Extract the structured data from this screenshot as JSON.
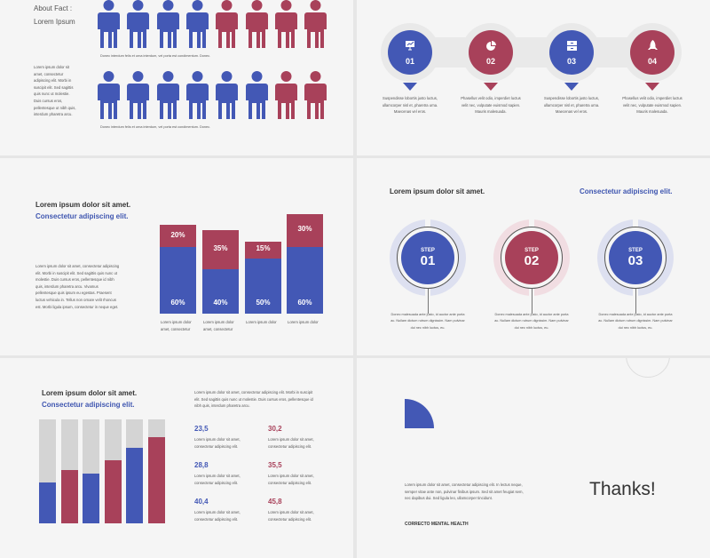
{
  "colors": {
    "blue": "#4358b5",
    "red": "#a8415a",
    "gray": "#d4d4d4"
  },
  "slide1": {
    "title": "About Fact :",
    "subtitle": "Lorem Ipsum",
    "paragraph": "Lorem ipsum dolor sit amet, consectetur adipiscing elit. Morbi in suscipit elit. Sed sagittis quis nunc ut molestie. Duis cursus eros, pellentesque ut nibh quis, interdum pharetra arcu.",
    "rows": [
      {
        "people": [
          "blue",
          "blue",
          "blue",
          "blue",
          "red",
          "red",
          "red",
          "red"
        ],
        "caption": "Donec interdum felis et urna interdum, vel porta est condimentum. Donec."
      },
      {
        "people": [
          "blue",
          "blue",
          "blue",
          "blue",
          "blue",
          "blue",
          "red",
          "red"
        ],
        "caption": "Donec interdum felis et urna interdum, vel porta est condimentum. Donec."
      }
    ]
  },
  "slide2": {
    "steps": [
      {
        "num": "01",
        "icon": "presentation-chart-icon",
        "color": "blue",
        "text": "Suspendisse lobortis justo luctus, ullamcorper nisl et, pharetra urna. Maecenas vel eros."
      },
      {
        "num": "02",
        "icon": "pie-chart-icon",
        "color": "red",
        "text": "Phasellus velit odio, imperdiet luctus velit nec, vulputate euismod sapien. Mauris malesuada."
      },
      {
        "num": "03",
        "icon": "filing-cabinet-icon",
        "color": "blue",
        "text": "Suspendisse lobortis justo luctus, ullamcorper nisl et, pharetra urna. Maecenas vel eros."
      },
      {
        "num": "04",
        "icon": "rocket-icon",
        "color": "red",
        "text": "Phasellus velit odio, imperdiet luctus velit nec, vulputate euismod sapien. Mauris malesuada."
      }
    ]
  },
  "slide3": {
    "title": "Lorem ipsum dolor sit amet.",
    "subtitle": "Consectetur adipiscing elit.",
    "paragraph": "Lorem ipsum dolor sit amet, consectetur adipiscing elit. Morbi in suscipit elit. Sed sagittis quis nunc ut molestie. Duis cursus eros, pellentesque id nibh quis, interdum pharetra arcu. Vivamus pellentesque quis ipsum eu egestas. Praesent luctus vehicula in. Tellus non ornare velit rhoncus est. Morbi ligula ipsum, consectetur in neque eget."
  },
  "chart_data": [
    {
      "type": "bar",
      "stacked": true,
      "categories": [
        "Lorem ipsum dolor amet, consectetur",
        "Lorem ipsum dolor amet, consectetur",
        "Lorem ipsum dolor",
        "Lorem ipsum dolor"
      ],
      "series": [
        {
          "color": "#4358b5",
          "values": [
            60,
            40,
            50,
            60
          ],
          "labels": [
            "60%",
            "40%",
            "50%",
            "60%"
          ]
        },
        {
          "color": "#a8415a",
          "values": [
            20,
            35,
            15,
            30
          ],
          "labels": [
            "20%",
            "35%",
            "15%",
            "30%"
          ]
        }
      ]
    },
    {
      "type": "bar",
      "stacked": false,
      "ylim": [
        0,
        100
      ],
      "values": [
        39,
        51,
        48,
        61,
        73,
        83
      ],
      "colors": [
        "blue",
        "red",
        "blue",
        "red",
        "blue",
        "red"
      ]
    }
  ],
  "slide4": {
    "title": "Lorem ipsum dolor sit amet.",
    "subtitle": "Consectetur adipiscing elit.",
    "steps": [
      {
        "label": "STEP",
        "num": "01",
        "color": "blue",
        "text": "Donec malesuada ante justo, id auctor ante porta ac. Nullam dictum rutrum dignissim. Nam pulvinar dui nec nibh luctus, eu."
      },
      {
        "label": "STEP",
        "num": "02",
        "color": "red",
        "text": "Donec malesuada ante justo, id auctor ante porta ac. Nullam dictum rutrum dignissim. Nam pulvinar dui nec nibh luctus, eu."
      },
      {
        "label": "STEP",
        "num": "03",
        "color": "blue",
        "text": "Donec malesuada ante justo, id auctor ante porta ac. Nullam dictum rutrum dignissim. Nam pulvinar dui nec nibh luctus, eu."
      }
    ]
  },
  "slide5": {
    "title": "Lorem ipsum dolor sit amet.",
    "subtitle": "Consectetur adipiscing elit.",
    "paragraph": "Lorem ipsum dolor sit amet, consectetur adipiscing elit. Morbi in suscipit elit. Sed sagittis quis nunc ut molestie. Duis cursus eros, pellentesque id nibh quis, interdum pharetra arcu.",
    "stats": [
      {
        "value": "23,5",
        "color": "blue",
        "text": "Lorem ipsum dolor sit amet, consectetur adipiscing elit."
      },
      {
        "value": "30,2",
        "color": "red",
        "text": "Lorem ipsum dolor sit amet, consectetur adipiscing elit."
      },
      {
        "value": "28,8",
        "color": "blue",
        "text": "Lorem ipsum dolor sit amet, consectetur adipiscing elit."
      },
      {
        "value": "35,5",
        "color": "red",
        "text": "Lorem ipsum dolor sit amet, consectetur adipiscing elit."
      },
      {
        "value": "40,4",
        "color": "blue",
        "text": "Lorem ipsum dolor sit amet, consectetur adipiscing elit."
      },
      {
        "value": "45,8",
        "color": "red",
        "text": "Lorem ipsum dolor sit amet, consectetur adipiscing elit."
      }
    ]
  },
  "slide6": {
    "paragraph": "Lorem ipsum dolor sit amet, consectetur adipiscing elit. In lectus neque, semper vitae ante non, pulvinar finibus ipsum. Sed sit amet feugiat sem, nec dapibus dui. Sed ligula leo, ullamcorper tincidunt.",
    "brand": "CORRECTO MENTAL HEALTH",
    "thanks": "Thanks!"
  }
}
